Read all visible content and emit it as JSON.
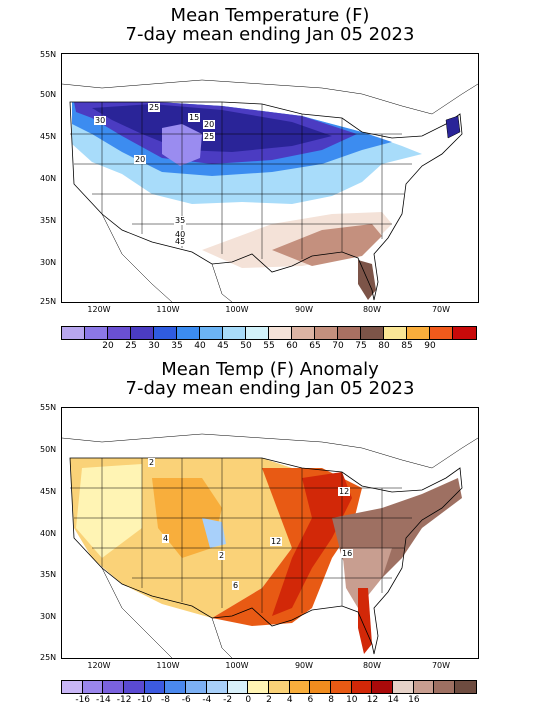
{
  "top_panel": {
    "title_line1": "Mean Temperature (F)",
    "title_line2": "7-day mean ending Jan 05 2023",
    "lat_labels": [
      "55N",
      "50N",
      "45N",
      "40N",
      "35N",
      "30N",
      "25N"
    ],
    "lon_labels": [
      "120W",
      "110W",
      "100W",
      "90W",
      "80W",
      "70W"
    ],
    "map_labels": [
      "25",
      "15",
      "20",
      "25",
      "30",
      "20",
      "35",
      "40",
      "45"
    ],
    "colorbar": {
      "colors": [
        "#b8a6ee",
        "#8c78e6",
        "#6a50d2",
        "#4b3cc2",
        "#2f5ce0",
        "#3c8cf0",
        "#6cb4f4",
        "#a8dcfa",
        "#d2f2fa",
        "#f4e2d8",
        "#dcb4a4",
        "#c4907e",
        "#a87062",
        "#7c5448",
        "#fae696",
        "#faae3c",
        "#f05a1c",
        "#c80a0a"
      ],
      "labels": [
        "20",
        "25",
        "30",
        "35",
        "40",
        "45",
        "50",
        "55",
        "60",
        "65",
        "70",
        "75",
        "80",
        "85",
        "90"
      ]
    }
  },
  "bottom_panel": {
    "title_line1": "Mean Temp (F) Anomaly",
    "title_line2": "7-day mean ending Jan 05 2023",
    "lat_labels": [
      "55N",
      "50N",
      "45N",
      "40N",
      "35N",
      "30N",
      "25N"
    ],
    "lon_labels": [
      "120W",
      "110W",
      "100W",
      "90W",
      "80W",
      "70W"
    ],
    "map_labels": [
      "2",
      "4",
      "2",
      "12",
      "6",
      "12",
      "16"
    ],
    "colorbar": {
      "colors": [
        "#c8b6f6",
        "#9a86ec",
        "#7a62de",
        "#5a4ad2",
        "#3c5ae0",
        "#4a88ee",
        "#7cb0f4",
        "#a8d0fa",
        "#d8f0fa",
        "#fff4b4",
        "#fad278",
        "#f8ae3c",
        "#f08c1e",
        "#e85a14",
        "#d22808",
        "#aa0a0a",
        "#e6d2c8",
        "#c89e90",
        "#9e7062",
        "#6e4c40"
      ],
      "labels": [
        "-16",
        "-14",
        "-12",
        "-10",
        "-8",
        "-6",
        "-4",
        "-2",
        "0",
        "2",
        "4",
        "6",
        "8",
        "10",
        "12",
        "14",
        "16"
      ]
    }
  }
}
